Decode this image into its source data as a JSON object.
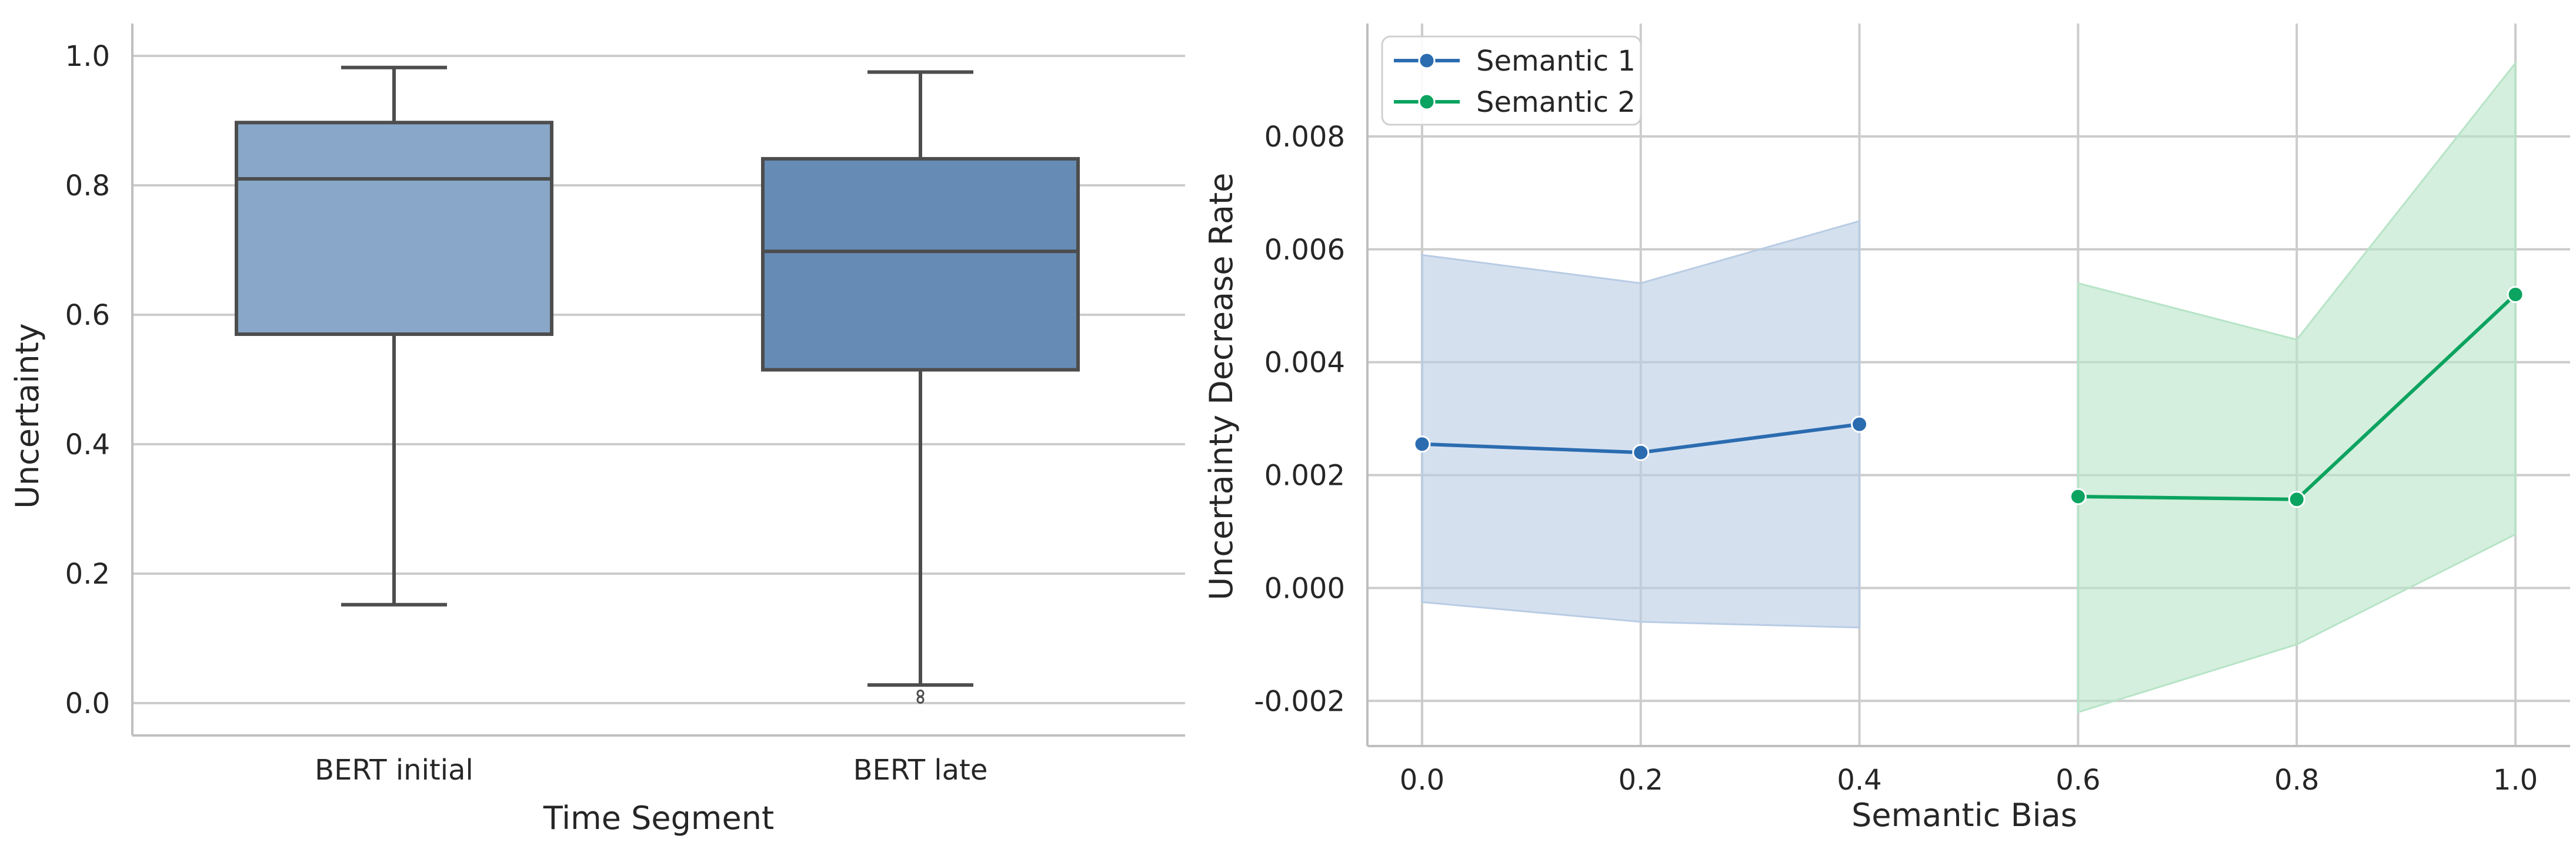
{
  "chart_data": [
    {
      "type": "box",
      "xlabel": "Time Segment",
      "ylabel": "Uncertainty",
      "ylim": [
        -0.05,
        1.05
      ],
      "yticks": [
        0.0,
        0.2,
        0.4,
        0.6,
        0.8,
        1.0
      ],
      "ytick_labels": [
        "0.0",
        "0.2",
        "0.4",
        "0.6",
        "0.8",
        "1.0"
      ],
      "grid": true,
      "categories": [
        "BERT initial",
        "BERT late"
      ],
      "boxes": [
        {
          "name": "BERT initial",
          "whisker_low": 0.152,
          "q1": 0.57,
          "median": 0.81,
          "q3": 0.897,
          "whisker_high": 0.982,
          "outliers": [],
          "color": "#88a7c9"
        },
        {
          "name": "BERT late",
          "whisker_low": 0.028,
          "q1": 0.515,
          "median": 0.698,
          "q3": 0.841,
          "whisker_high": 0.975,
          "outliers": [
            0.005,
            0.015
          ],
          "color": "#668cb6"
        }
      ]
    },
    {
      "type": "line",
      "xlabel": "Semantic Bias",
      "ylabel": "Uncertainty Decrease Rate",
      "xlim": [
        -0.05,
        1.05
      ],
      "ylim": [
        -0.0028,
        0.01
      ],
      "xticks": [
        0.0,
        0.2,
        0.4,
        0.6,
        0.8,
        1.0
      ],
      "xtick_labels": [
        "0.0",
        "0.2",
        "0.4",
        "0.6",
        "0.8",
        "1.0"
      ],
      "yticks": [
        -0.002,
        0.0,
        0.002,
        0.004,
        0.006,
        0.008
      ],
      "ytick_labels": [
        "-0.002",
        "0.000",
        "0.002",
        "0.004",
        "0.006",
        "0.008"
      ],
      "grid": true,
      "legend_position": "top-left",
      "series": [
        {
          "name": "Semantic 1",
          "color": "#2b6cb0",
          "band_color": "#b9cce4",
          "x": [
            0.0,
            0.2,
            0.4
          ],
          "y": [
            0.00255,
            0.0024,
            0.0029
          ],
          "ci_lower": [
            -0.00025,
            -0.0006,
            -0.0007
          ],
          "ci_upper": [
            0.0059,
            0.0054,
            0.0065
          ]
        },
        {
          "name": "Semantic 2",
          "color": "#0ba360",
          "band_color": "#b7e4c7",
          "x": [
            0.6,
            0.8,
            1.0
          ],
          "y": [
            0.00162,
            0.00157,
            0.0052
          ],
          "ci_lower": [
            -0.0022,
            -0.001,
            0.00095
          ],
          "ci_upper": [
            0.0054,
            0.0044,
            0.0093
          ]
        }
      ]
    }
  ]
}
